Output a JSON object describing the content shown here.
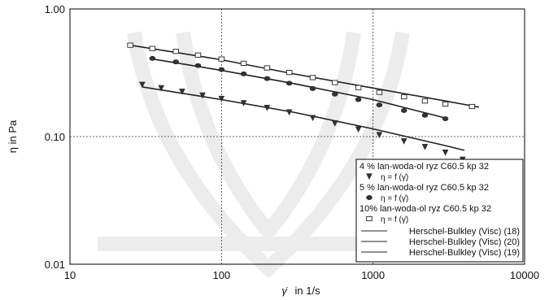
{
  "chart_data": {
    "type": "scatter",
    "x_scale": "log",
    "y_scale": "log",
    "xlim": [
      10,
      10000
    ],
    "ylim": [
      0.01,
      1.0
    ],
    "grid": true,
    "legend_placement": "bottom-right",
    "xlabel_symbol": "γ̇",
    "xlabel_text": "in 1/s",
    "ylabel": "η in Pa",
    "x_ticks": [
      {
        "value": 10,
        "label": "10"
      },
      {
        "value": 100,
        "label": "100"
      },
      {
        "value": 1000,
        "label": "1000"
      },
      {
        "value": 10000,
        "label": "10000"
      }
    ],
    "y_ticks": [
      {
        "value": 0.01,
        "label": "0.01"
      },
      {
        "value": 0.1,
        "label": "0.10"
      },
      {
        "value": 1.0,
        "label": "1.00"
      }
    ],
    "series": [
      {
        "name": "4 % lan-woda-ol ryz C60.5 kp 32",
        "sub": "η = f (γ̇)",
        "marker": "triangle-down",
        "x": [
          30,
          40,
          55,
          75,
          100,
          140,
          200,
          280,
          400,
          560,
          800,
          1100,
          1600,
          2200,
          3000,
          3900
        ],
        "y": [
          0.255,
          0.24,
          0.225,
          0.21,
          0.198,
          0.183,
          0.168,
          0.155,
          0.14,
          0.127,
          0.114,
          0.103,
          0.092,
          0.083,
          0.075,
          0.066
        ]
      },
      {
        "name": "5 % lan-woda-ol ryz C60.5 kp 32",
        "sub": "η = f (γ̇)",
        "marker": "circle",
        "x": [
          35,
          50,
          70,
          100,
          140,
          200,
          280,
          400,
          560,
          800,
          1100,
          1600,
          2200,
          3000
        ],
        "y": [
          0.41,
          0.385,
          0.36,
          0.335,
          0.31,
          0.285,
          0.262,
          0.238,
          0.215,
          0.195,
          0.177,
          0.16,
          0.147,
          0.138
        ]
      },
      {
        "name": "10% lan-woda-ol ryz C60.5 kp 32",
        "sub": "η = f (γ̇)",
        "marker": "square",
        "x": [
          25,
          35,
          50,
          70,
          100,
          140,
          200,
          280,
          400,
          560,
          800,
          1100,
          1600,
          2200,
          3000,
          4500
        ],
        "y": [
          0.52,
          0.49,
          0.465,
          0.435,
          0.405,
          0.375,
          0.345,
          0.318,
          0.29,
          0.265,
          0.242,
          0.222,
          0.205,
          0.19,
          0.18,
          0.172
        ]
      }
    ],
    "fits": [
      {
        "name": "Herschel-Bulkley (Visc) (18)",
        "x": [
          30,
          100,
          300,
          1000,
          3000,
          4000
        ],
        "y": [
          0.245,
          0.195,
          0.155,
          0.115,
          0.085,
          0.078
        ]
      },
      {
        "name": "Herschel-Bulkley (Visc) (20)",
        "x": [
          35,
          100,
          300,
          1000,
          3000
        ],
        "y": [
          0.405,
          0.33,
          0.26,
          0.195,
          0.14
        ]
      },
      {
        "name": "Herschel-Bulkley (Visc) (19)",
        "x": [
          25,
          100,
          300,
          1000,
          3000,
          5000
        ],
        "y": [
          0.52,
          0.4,
          0.31,
          0.24,
          0.19,
          0.17
        ]
      }
    ]
  }
}
